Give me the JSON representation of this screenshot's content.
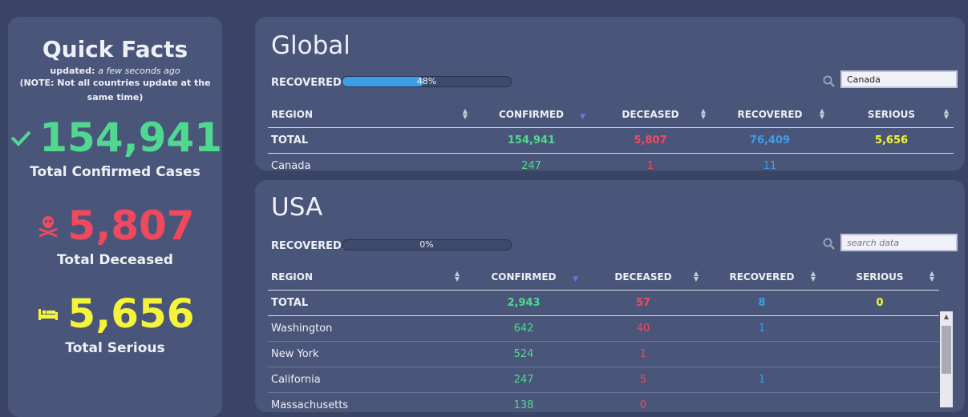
{
  "quick_facts": {
    "title": "Quick Facts",
    "updated_prefix": "updated:",
    "updated_value": "a few seconds ago",
    "note": "(NOTE: Not all countries update at the same time)",
    "confirmed": {
      "value": "154,941",
      "label": "Total Confirmed Cases",
      "icon": "check-icon"
    },
    "deceased": {
      "value": "5,807",
      "label": "Total Deceased",
      "icon": "skull-crossbones-icon"
    },
    "serious": {
      "value": "5,656",
      "label": "Total Serious",
      "icon": "bed-icon"
    }
  },
  "colors": {
    "background": "#3a4565",
    "panel": "#4a5679",
    "confirmed": "#50d890",
    "deceased": "#f2485e",
    "recovered": "#3d9ee8",
    "serious": "#f4f43a"
  },
  "global": {
    "title": "Global",
    "recovered_label": "RECOVERED:",
    "recovered_percent": 48,
    "recovered_text": "48%",
    "search_value": "Canada",
    "search_placeholder": "search data",
    "columns": [
      "REGION",
      "CONFIRMED",
      "DECEASED",
      "RECOVERED",
      "SERIOUS"
    ],
    "total": {
      "region": "TOTAL",
      "confirmed": "154,941",
      "deceased": "5,807",
      "recovered": "76,409",
      "serious": "5,656"
    },
    "rows": [
      {
        "region": "Canada",
        "confirmed": "247",
        "deceased": "1",
        "recovered": "11",
        "serious": ""
      }
    ]
  },
  "usa": {
    "title": "USA",
    "recovered_label": "RECOVERED:",
    "recovered_percent": 0,
    "recovered_text": "0%",
    "search_value": "",
    "search_placeholder": "search data",
    "columns": [
      "REGION",
      "CONFIRMED",
      "DECEASED",
      "RECOVERED",
      "SERIOUS"
    ],
    "total": {
      "region": "TOTAL",
      "confirmed": "2,943",
      "deceased": "57",
      "recovered": "8",
      "serious": "0"
    },
    "rows": [
      {
        "region": "Washington",
        "confirmed": "642",
        "deceased": "40",
        "recovered": "1",
        "serious": ""
      },
      {
        "region": "New York",
        "confirmed": "524",
        "deceased": "1",
        "recovered": "",
        "serious": ""
      },
      {
        "region": "California",
        "confirmed": "247",
        "deceased": "5",
        "recovered": "1",
        "serious": ""
      },
      {
        "region": "Massachusetts",
        "confirmed": "138",
        "deceased": "0",
        "recovered": "",
        "serious": ""
      }
    ]
  }
}
